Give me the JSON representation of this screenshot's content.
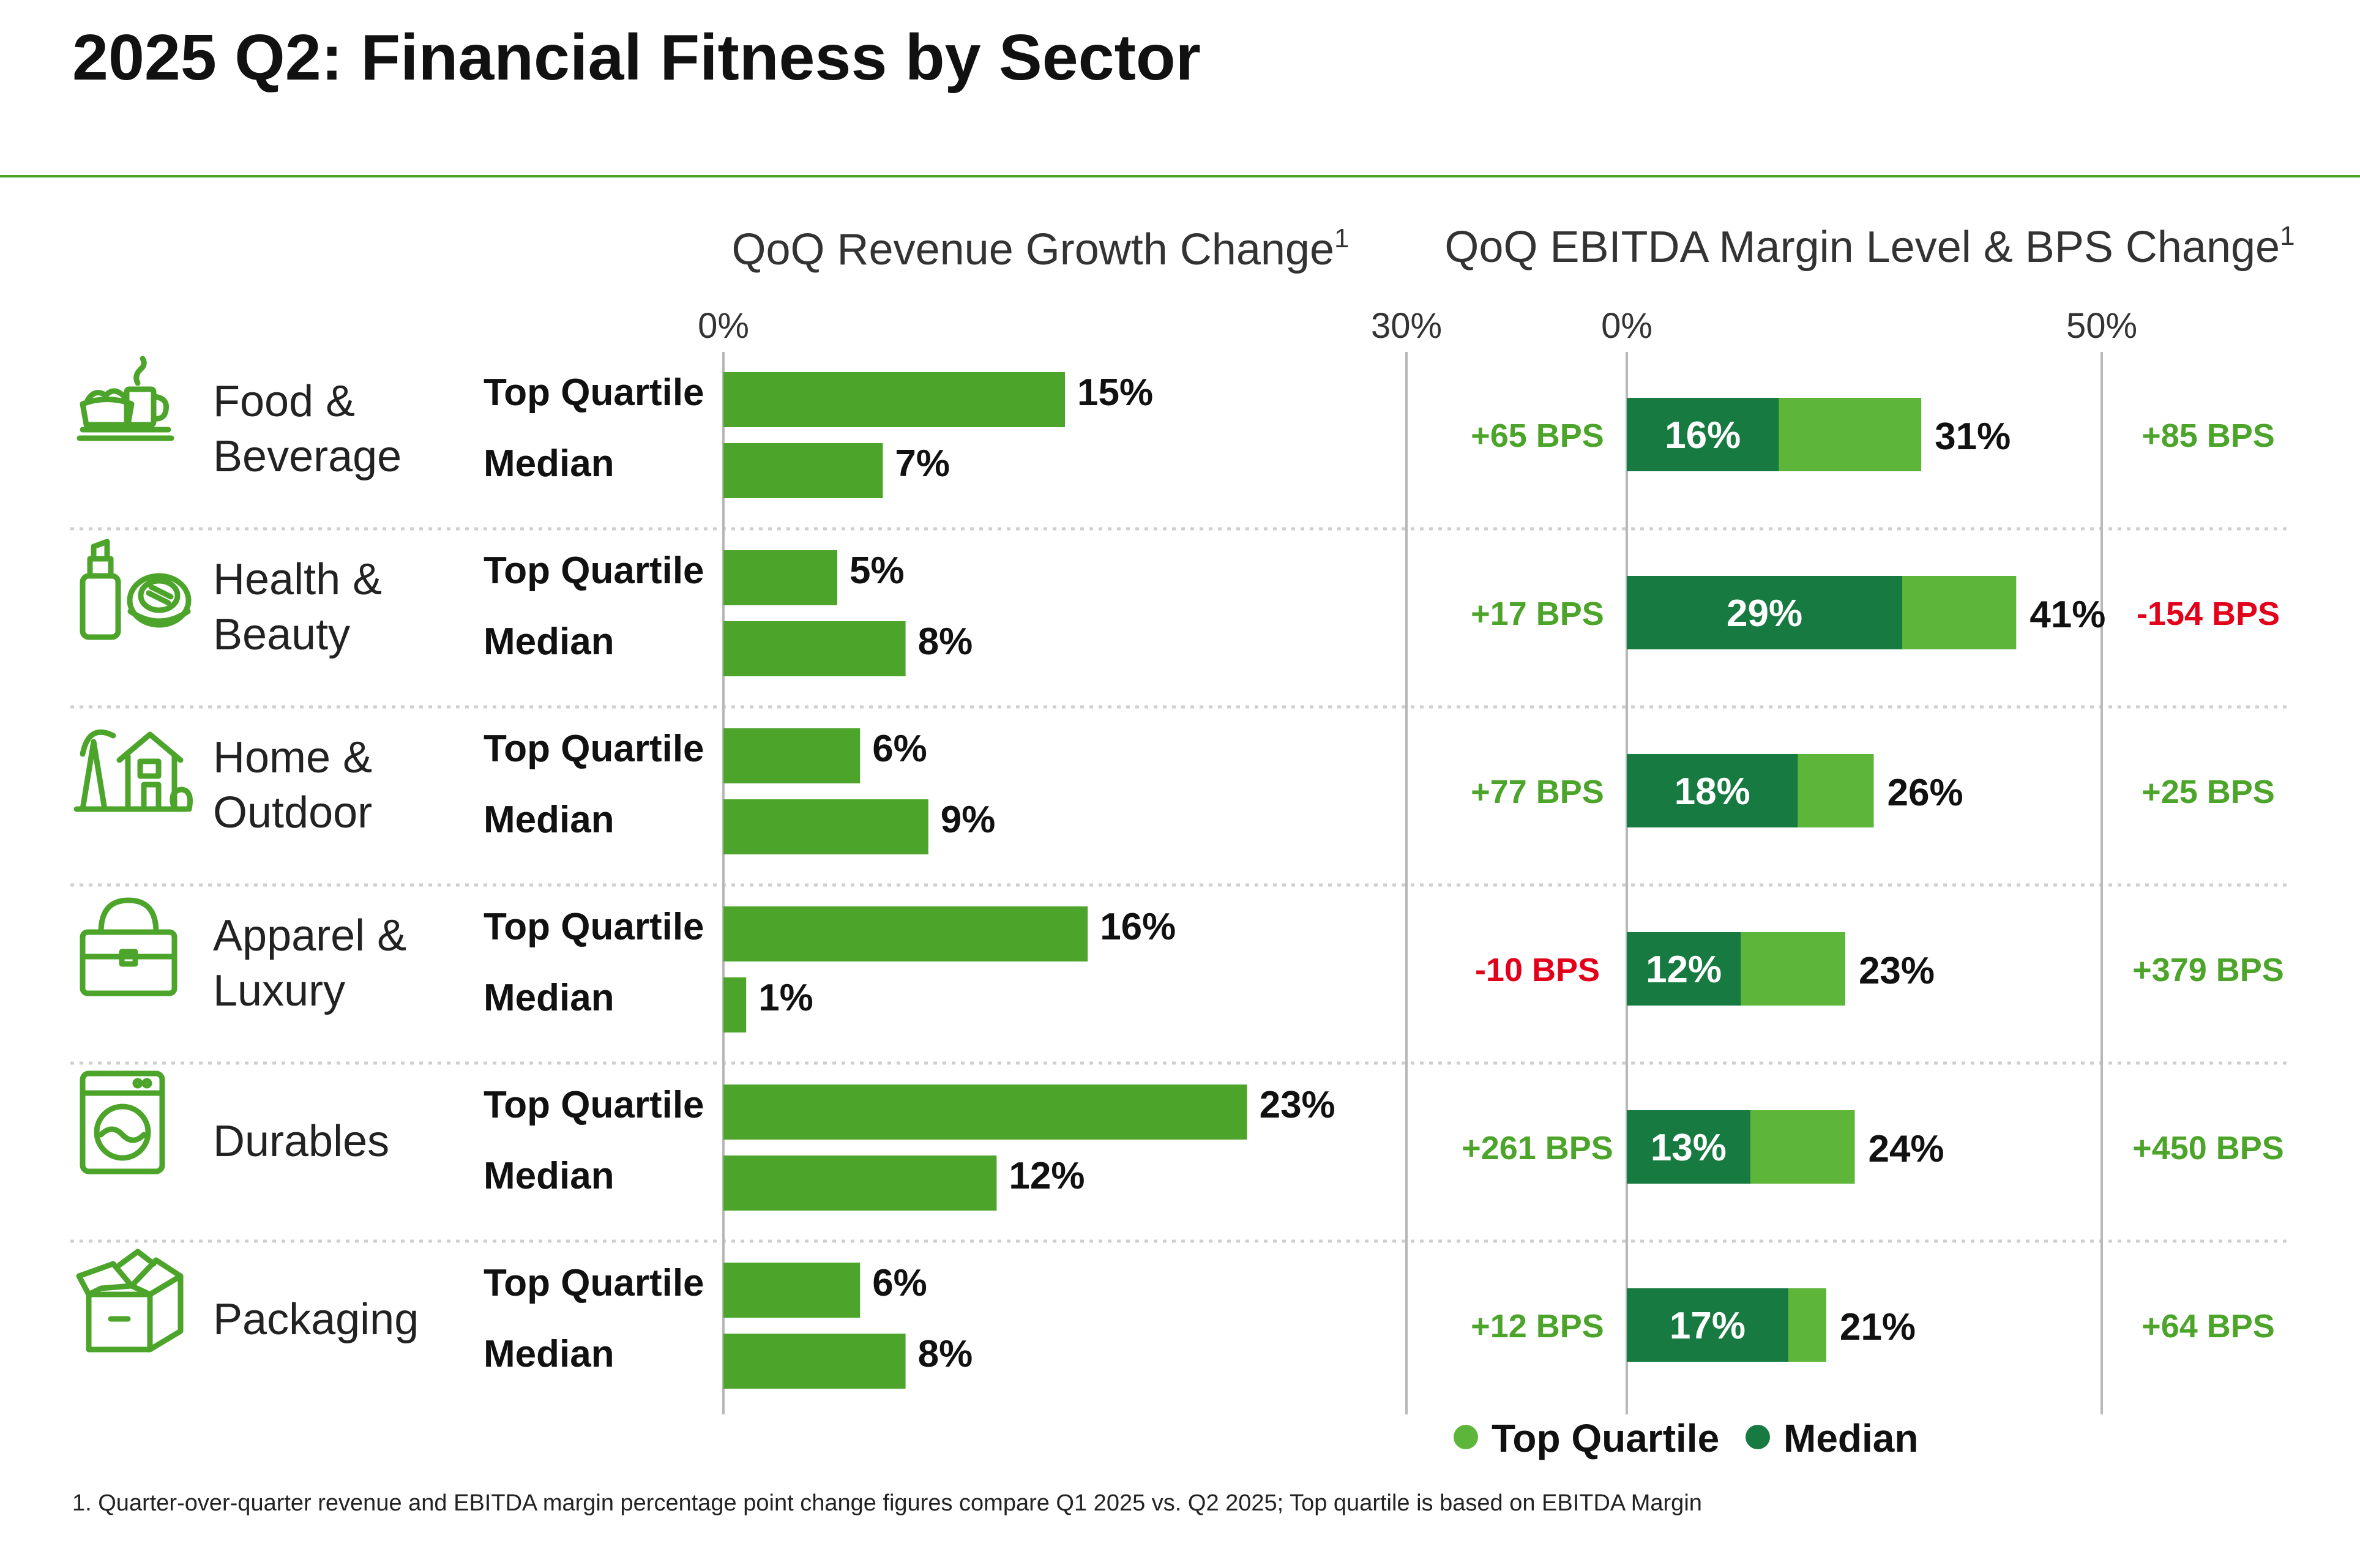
{
  "title": "2025 Q2: Financial Fitness by Sector",
  "footnote": "1. Quarter-over-quarter revenue and EBITDA margin percentage point change figures compare Q1 2025 vs. Q2 2025; Top quartile is based on EBITDA Margin",
  "colors": {
    "bar_green": "#4ca52a",
    "top_quartile_light": "#5db53a",
    "median_dark": "#177a40",
    "positive_text": "#4ca52a",
    "negative_text": "#e2001a",
    "rule_green": "#4ca52a",
    "axis_gray": "#b8b8b8",
    "divider_gray": "#cfcfcf"
  },
  "chart_data": [
    {
      "type": "bar",
      "orientation": "horizontal",
      "title": "QoQ Revenue Growth Change",
      "title_superscript": "1",
      "xlim": [
        0,
        30
      ],
      "tick_labels": [
        "0%",
        "30%"
      ],
      "categories": [
        "Food & Beverage",
        "Health & Beauty",
        "Home & Outdoor",
        "Apparel & Luxury",
        "Durables",
        "Packaging"
      ],
      "series": [
        {
          "name": "Top Quartile",
          "values": [
            15,
            5,
            6,
            16,
            23,
            6
          ],
          "labels": [
            "15%",
            "5%",
            "6%",
            "16%",
            "23%",
            "6%"
          ]
        },
        {
          "name": "Median",
          "values": [
            7,
            8,
            9,
            1,
            12,
            8
          ],
          "labels": [
            "7%",
            "8%",
            "9%",
            "1%",
            "12%",
            "8%"
          ]
        }
      ]
    },
    {
      "type": "bar",
      "orientation": "horizontal",
      "stacked": "overlay",
      "title": "QoQ EBITDA Margin Level & BPS Change",
      "title_superscript": "1",
      "xlim": [
        0,
        50
      ],
      "tick_labels": [
        "0%",
        "50%"
      ],
      "categories": [
        "Food & Beverage",
        "Health & Beauty",
        "Home & Outdoor",
        "Apparel & Luxury",
        "Durables",
        "Packaging"
      ],
      "series": [
        {
          "name": "Median",
          "values": [
            16,
            29,
            18,
            12,
            13,
            17
          ],
          "labels": [
            "16%",
            "29%",
            "18%",
            "12%",
            "13%",
            "17%"
          ],
          "bps_change": [
            "+65 BPS",
            "+17 BPS",
            "+77 BPS",
            "-10 BPS",
            "+261 BPS",
            "+12 BPS"
          ]
        },
        {
          "name": "Top Quartile",
          "values": [
            31,
            41,
            26,
            23,
            24,
            21
          ],
          "labels": [
            "31%",
            "41%",
            "26%",
            "23%",
            "24%",
            "21%"
          ],
          "bps_change": [
            "+85 BPS",
            "-154 BPS",
            "+25 BPS",
            "+379 BPS",
            "+450 BPS",
            "+64 BPS"
          ]
        }
      ],
      "legend": {
        "placement": "bottom",
        "entries": [
          "Top Quartile",
          "Median"
        ]
      }
    }
  ],
  "sectors": [
    {
      "line1": "Food &",
      "line2": "Beverage",
      "icon": "food-beverage-icon"
    },
    {
      "line1": "Health &",
      "line2": "Beauty",
      "icon": "health-beauty-icon"
    },
    {
      "line1": "Home &",
      "line2": "Outdoor",
      "icon": "home-outdoor-icon"
    },
    {
      "line1": "Apparel &",
      "line2": "Luxury",
      "icon": "apparel-luxury-icon"
    },
    {
      "line1": "Durables",
      "line2": "",
      "icon": "durables-icon"
    },
    {
      "line1": "Packaging",
      "line2": "",
      "icon": "packaging-icon"
    }
  ],
  "row_labels": {
    "top": "Top Quartile",
    "median": "Median"
  }
}
